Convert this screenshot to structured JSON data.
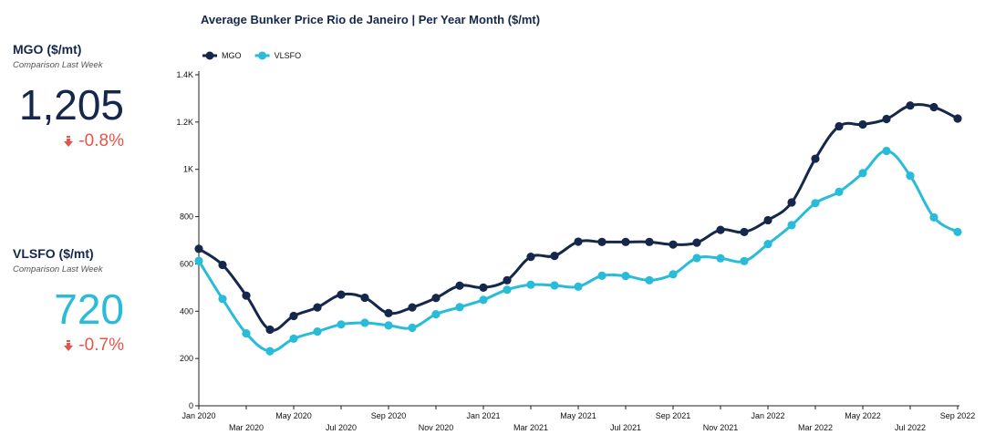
{
  "kpis": {
    "mgo": {
      "title": "MGO ($/mt)",
      "subtitle": "Comparison Last Week",
      "value": "1,205",
      "change": "-0.8%"
    },
    "vlsfo": {
      "title": "VLSFO ($/mt)",
      "subtitle": "Comparison Last Week",
      "value": "720",
      "change": "-0.7%"
    }
  },
  "colors": {
    "mgo": "#15274a",
    "vlsfo": "#29bcd9",
    "change_down": "#e8544a"
  },
  "chart_data": {
    "type": "line",
    "title": "Average Bunker Price Rio de Janeiro | Per Year Month ($/mt)",
    "xlabel": "",
    "ylabel": "",
    "ylim": [
      0,
      1400
    ],
    "y_ticks": [
      0,
      200,
      400,
      600,
      800,
      1000,
      1200,
      1400
    ],
    "y_tick_labels": [
      "0",
      "200",
      "400",
      "600",
      "800",
      "1K",
      "1.2K",
      "1.4K"
    ],
    "legend_position": "top-left",
    "x": [
      "Jan 2020",
      "Feb 2020",
      "Mar 2020",
      "Apr 2020",
      "May 2020",
      "Jun 2020",
      "Jul 2020",
      "Aug 2020",
      "Sep 2020",
      "Oct 2020",
      "Nov 2020",
      "Dec 2020",
      "Jan 2021",
      "Feb 2021",
      "Mar 2021",
      "Apr 2021",
      "May 2021",
      "Jun 2021",
      "Jul 2021",
      "Aug 2021",
      "Sep 2021",
      "Oct 2021",
      "Nov 2021",
      "Dec 2021",
      "Jan 2022",
      "Feb 2022",
      "Mar 2022",
      "Apr 2022",
      "May 2022",
      "Jun 2022",
      "Jul 2022",
      "Aug 2022",
      "Sep 2022"
    ],
    "x_tick_labels_top": [
      "Jan 2020",
      "May 2020",
      "Sep 2020",
      "Jan 2021",
      "May 2021",
      "Sep 2021",
      "Jan 2022",
      "May 2022",
      "Sep 2022"
    ],
    "x_tick_labels_bottom": [
      "Mar 2020",
      "Jul 2020",
      "Nov 2020",
      "Mar 2021",
      "Jul 2021",
      "Nov 2021",
      "Mar 2022",
      "Jul 2022"
    ],
    "series": [
      {
        "name": "MGO",
        "values": [
          664,
          596,
          466,
          322,
          380,
          416,
          470,
          457,
          392,
          416,
          456,
          508,
          500,
          531,
          630,
          634,
          694,
          693,
          693,
          693,
          682,
          690,
          744,
          735,
          785,
          860,
          1045,
          1182,
          1190,
          1213,
          1270,
          1263,
          1215
        ]
      },
      {
        "name": "VLSFO",
        "values": [
          613,
          452,
          306,
          231,
          284,
          314,
          344,
          351,
          340,
          330,
          387,
          417,
          448,
          491,
          512,
          509,
          504,
          550,
          549,
          531,
          556,
          625,
          624,
          612,
          684,
          764,
          857,
          905,
          984,
          1078,
          973,
          797,
          735
        ]
      }
    ]
  }
}
